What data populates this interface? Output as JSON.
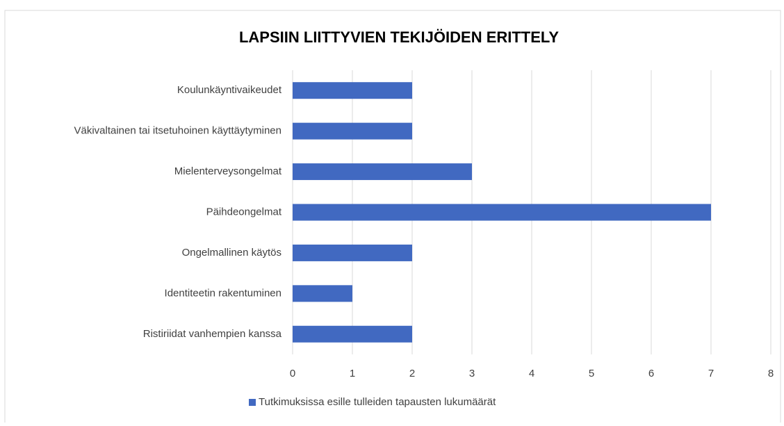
{
  "chart_data": {
    "type": "bar",
    "orientation": "horizontal",
    "title": "LAPSIIN LIITTYVIEN TEKIJÖIDEN ERITTELY",
    "categories": [
      "Koulunkäyntivaikeudet",
      "Väkivaltainen tai itsetuhoinen käyttäytyminen",
      "Mielenterveysongelmat",
      "Päihdeongelmat",
      "Ongelmallinen käytös",
      "Identiteetin rakentuminen",
      "Ristiriidat vanhempien kanssa"
    ],
    "series": [
      {
        "name": "Tutkimuksissa esille tulleiden tapausten lukumäärät",
        "color": "#4169c1",
        "values": [
          2,
          2,
          3,
          7,
          2,
          1,
          2
        ]
      }
    ],
    "xlim": [
      0,
      8
    ],
    "xticks": [
      0,
      1,
      2,
      3,
      4,
      5,
      6,
      7,
      8
    ],
    "grid": true,
    "legend": "bottom"
  }
}
